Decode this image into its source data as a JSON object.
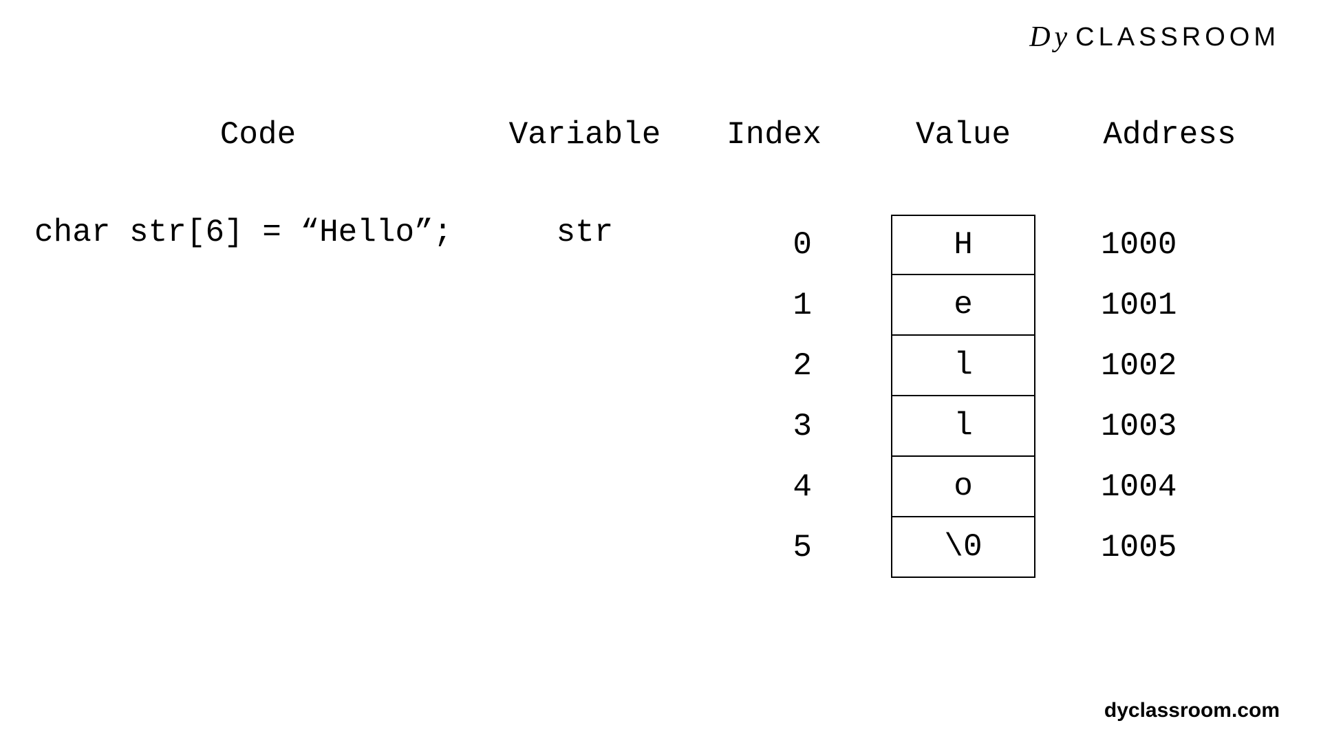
{
  "logo": {
    "icon": "Dy",
    "text": "CLASSROOM"
  },
  "footer": "dyclassroom.com",
  "headers": {
    "code": "Code",
    "variable": "Variable",
    "index": "Index",
    "value": "Value",
    "address": "Address"
  },
  "code_text": "char str[6] = “Hello”;",
  "variable_name": "str",
  "memory": {
    "rows": [
      {
        "index": "0",
        "value": "H",
        "address": "1000"
      },
      {
        "index": "1",
        "value": "e",
        "address": "1001"
      },
      {
        "index": "2",
        "value": "l",
        "address": "1002"
      },
      {
        "index": "3",
        "value": "l",
        "address": "1003"
      },
      {
        "index": "4",
        "value": "o",
        "address": "1004"
      },
      {
        "index": "5",
        "value": "\\0",
        "address": "1005"
      }
    ]
  },
  "styling": {
    "background_color": "#ffffff",
    "text_color": "#000000",
    "border_color": "#000000",
    "font_family": "Courier New",
    "header_fontsize": 46,
    "cell_fontsize": 46,
    "value_box_width": 210,
    "value_box_height": 88,
    "border_width": 2
  }
}
